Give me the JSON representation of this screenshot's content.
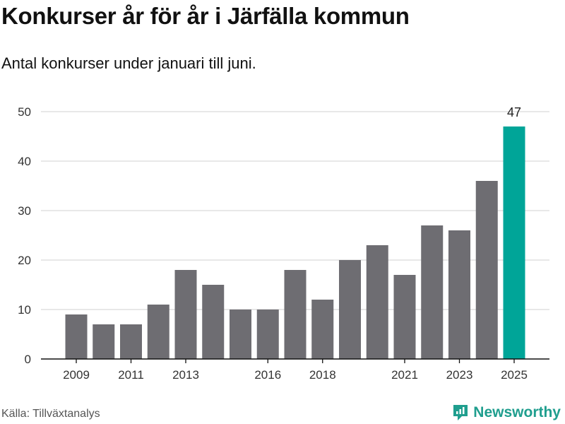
{
  "title": "Konkurser år för år i Järfälla kommun",
  "subtitle": "Antal konkurser under januari till juni.",
  "source": "Källa: Tillväxtanalys",
  "brand": "Newsworthy",
  "colors": {
    "bar": "#6e6d72",
    "highlight": "#00a598",
    "grid": "#d9d9d9",
    "axis": "#111111",
    "brand": "#1f9e8e"
  },
  "chart_data": {
    "type": "bar",
    "title": "Konkurser år för år i Järfälla kommun",
    "subtitle": "Antal konkurser under januari till juni.",
    "categories": [
      "2009",
      "2010",
      "2011",
      "2012",
      "2013",
      "2014",
      "2015",
      "2016",
      "2017",
      "2018",
      "2019",
      "2020",
      "2021",
      "2022",
      "2023",
      "2024",
      "2025"
    ],
    "values": [
      9,
      7,
      7,
      11,
      18,
      15,
      10,
      10,
      18,
      12,
      20,
      23,
      17,
      27,
      26,
      36,
      47
    ],
    "x_tick_labels": [
      "2009",
      "2011",
      "2013",
      "2016",
      "2018",
      "2021",
      "2023",
      "2025"
    ],
    "y_ticks": [
      "0",
      "10",
      "20",
      "30",
      "40",
      "50"
    ],
    "ylim": [
      0,
      50
    ],
    "highlight_category": "2025",
    "data_labels": [
      {
        "category": "2025",
        "text": "47"
      }
    ],
    "grid": true,
    "legend": "none",
    "xlabel": "",
    "ylabel": ""
  }
}
